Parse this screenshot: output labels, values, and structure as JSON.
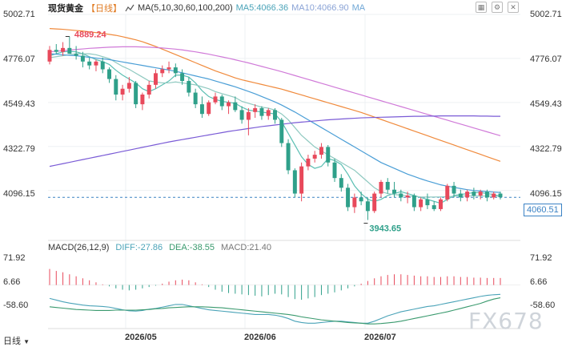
{
  "header": {
    "symbol": "现货黄金",
    "period": "【日线】",
    "ma_label": "MA(5,10,30,60,100,200)",
    "ma5": "MA5:4066.36",
    "ma10": "MA10:4066.90",
    "ma_more": "MA"
  },
  "macd_header": {
    "label": "MACD(26,12,9)",
    "dif": "DIFF:-27.86",
    "dea": "DEA:-38.55",
    "macd": "MACD:21.40"
  },
  "current_price": "4060.51",
  "bottom_tab": "日线",
  "watermark": "FX678",
  "colors": {
    "up": "#e8495b",
    "down": "#2fa08a",
    "ma5": "#5bbfb3",
    "ma10": "#8fc9c0",
    "ma30": "#4a9ed6",
    "ma60": "#f08a3c",
    "ma100": "#d07ad8",
    "ma200": "#7a5bd6"
  },
  "chart_data": [
    {
      "type": "candlestick",
      "title": "现货黄金 日线",
      "y_ticks": [
        5002.71,
        4776.07,
        4549.43,
        4322.79,
        4096.15
      ],
      "y_range": [
        3880,
        5002.71
      ],
      "x_ticks": [
        "2026/05",
        "2026/06",
        "2026/07"
      ],
      "annotations": [
        {
          "label": "4889.24",
          "value": 4889.24
        },
        {
          "label": "3943.65",
          "value": 3943.65
        }
      ],
      "current_price": 4060.51,
      "candles": [
        [
          4760,
          4840,
          4745,
          4820
        ],
        [
          4820,
          4850,
          4800,
          4810
        ],
        [
          4810,
          4860,
          4790,
          4830
        ],
        [
          4830,
          4889,
          4810,
          4800
        ],
        [
          4800,
          4840,
          4770,
          4790
        ],
        [
          4790,
          4810,
          4730,
          4760
        ],
        [
          4760,
          4780,
          4720,
          4740
        ],
        [
          4740,
          4770,
          4710,
          4760
        ],
        [
          4760,
          4780,
          4700,
          4720
        ],
        [
          4720,
          4730,
          4650,
          4670
        ],
        [
          4670,
          4690,
          4560,
          4590
        ],
        [
          4590,
          4640,
          4560,
          4620
        ],
        [
          4620,
          4680,
          4600,
          4650
        ],
        [
          4650,
          4660,
          4520,
          4540
        ],
        [
          4540,
          4600,
          4510,
          4590
        ],
        [
          4590,
          4660,
          4570,
          4640
        ],
        [
          4640,
          4720,
          4620,
          4700
        ],
        [
          4700,
          4740,
          4680,
          4720
        ],
        [
          4720,
          4760,
          4700,
          4730
        ],
        [
          4730,
          4750,
          4680,
          4700
        ],
        [
          4700,
          4720,
          4640,
          4660
        ],
        [
          4660,
          4680,
          4580,
          4600
        ],
        [
          4600,
          4620,
          4520,
          4540
        ],
        [
          4540,
          4580,
          4470,
          4490
        ],
        [
          4490,
          4560,
          4480,
          4550
        ],
        [
          4550,
          4600,
          4540,
          4580
        ],
        [
          4580,
          4590,
          4510,
          4530
        ],
        [
          4530,
          4560,
          4490,
          4550
        ],
        [
          4550,
          4580,
          4500,
          4510
        ],
        [
          4510,
          4530,
          4440,
          4460
        ],
        [
          4460,
          4520,
          4380,
          4500
        ],
        [
          4500,
          4540,
          4470,
          4520
        ],
        [
          4520,
          4530,
          4460,
          4480
        ],
        [
          4480,
          4520,
          4460,
          4510
        ],
        [
          4510,
          4520,
          4440,
          4460
        ],
        [
          4460,
          4470,
          4320,
          4340
        ],
        [
          4340,
          4360,
          4180,
          4200
        ],
        [
          4200,
          4210,
          4060,
          4080
        ],
        [
          4080,
          4240,
          4040,
          4220
        ],
        [
          4220,
          4280,
          4200,
          4260
        ],
        [
          4260,
          4300,
          4240,
          4280
        ],
        [
          4280,
          4340,
          4260,
          4320
        ],
        [
          4320,
          4330,
          4220,
          4240
        ],
        [
          4240,
          4260,
          4140,
          4160
        ],
        [
          4160,
          4180,
          4090,
          4110
        ],
        [
          4110,
          4130,
          3990,
          4010
        ],
        [
          4010,
          4080,
          3980,
          4060
        ],
        [
          4060,
          4090,
          4020,
          4040
        ],
        [
          4040,
          4060,
          3944,
          3990
        ],
        [
          3990,
          4090,
          3980,
          4080
        ],
        [
          4080,
          4150,
          4060,
          4140
        ],
        [
          4140,
          4160,
          4080,
          4100
        ],
        [
          4100,
          4140,
          4060,
          4080
        ],
        [
          4080,
          4100,
          4040,
          4060
        ],
        [
          4060,
          4090,
          4030,
          4070
        ],
        [
          4070,
          4080,
          3990,
          4010
        ],
        [
          4010,
          4060,
          3990,
          4050
        ],
        [
          4050,
          4080,
          4000,
          4020
        ],
        [
          4020,
          4040,
          3990,
          4000
        ],
        [
          4000,
          4060,
          3990,
          4050
        ],
        [
          4050,
          4130,
          4040,
          4120
        ],
        [
          4120,
          4140,
          4060,
          4080
        ],
        [
          4080,
          4100,
          4040,
          4060
        ],
        [
          4060,
          4100,
          4040,
          4090
        ],
        [
          4090,
          4110,
          4050,
          4070
        ],
        [
          4070,
          4100,
          4050,
          4090
        ],
        [
          4090,
          4100,
          4040,
          4060
        ],
        [
          4060,
          4090,
          4050,
          4080
        ],
        [
          4080,
          4090,
          4050,
          4061
        ]
      ],
      "ma_lines": [
        {
          "name": "MA5",
          "color": "#5bbfb3",
          "values": [
            4790,
            4800,
            4810,
            4812,
            4810,
            4800,
            4785,
            4770,
            4760,
            4745,
            4715,
            4690,
            4670,
            4650,
            4620,
            4605,
            4620,
            4640,
            4660,
            4690,
            4690,
            4680,
            4650,
            4610,
            4580,
            4565,
            4555,
            4550,
            4545,
            4525,
            4510,
            4505,
            4500,
            4495,
            4490,
            4450,
            4390,
            4330,
            4270,
            4230,
            4210,
            4220,
            4260,
            4250,
            4230,
            4180,
            4120,
            4080,
            4050,
            4040,
            4050,
            4070,
            4080,
            4090,
            4080,
            4070,
            4060,
            4050,
            4040,
            4030,
            4050,
            4070,
            4075,
            4080,
            4085,
            4085,
            4080,
            4075,
            4066
          ]
        },
        {
          "name": "MA10",
          "color": "#8fc9c0",
          "values": [
            4780,
            4785,
            4790,
            4795,
            4800,
            4800,
            4800,
            4795,
            4785,
            4775,
            4755,
            4735,
            4720,
            4700,
            4680,
            4660,
            4655,
            4650,
            4650,
            4655,
            4650,
            4645,
            4640,
            4630,
            4620,
            4605,
            4595,
            4585,
            4575,
            4555,
            4545,
            4535,
            4525,
            4520,
            4510,
            4490,
            4460,
            4420,
            4380,
            4350,
            4320,
            4300,
            4280,
            4260,
            4240,
            4220,
            4200,
            4170,
            4140,
            4110,
            4090,
            4080,
            4075,
            4072,
            4068,
            4065,
            4063,
            4062,
            4062,
            4063,
            4064,
            4066,
            4067,
            4068,
            4068,
            4067,
            4067,
            4067,
            4067
          ]
        },
        {
          "name": "MA30",
          "color": "#4a9ed6",
          "values": [
            4800,
            4798,
            4795,
            4792,
            4790,
            4786,
            4782,
            4778,
            4774,
            4770,
            4764,
            4758,
            4752,
            4746,
            4740,
            4734,
            4728,
            4722,
            4716,
            4710,
            4702,
            4694,
            4686,
            4678,
            4670,
            4660,
            4650,
            4640,
            4630,
            4618,
            4606,
            4594,
            4580,
            4566,
            4552,
            4536,
            4518,
            4500,
            4480,
            4460,
            4440,
            4420,
            4400,
            4380,
            4360,
            4340,
            4320,
            4300,
            4280,
            4260,
            4240,
            4225,
            4210,
            4195,
            4180,
            4168,
            4156,
            4145,
            4135,
            4125,
            4118,
            4112,
            4106,
            4100,
            4096,
            4093,
            4090,
            4088,
            4086
          ]
        },
        {
          "name": "MA60",
          "color": "#f08a3c",
          "values": [
            4930,
            4928,
            4926,
            4923,
            4920,
            4917,
            4913,
            4909,
            4905,
            4900,
            4895,
            4888,
            4880,
            4872,
            4862,
            4850,
            4838,
            4824,
            4810,
            4796,
            4782,
            4768,
            4754,
            4740,
            4726,
            4712,
            4700,
            4688,
            4676,
            4666,
            4658,
            4650,
            4642,
            4634,
            4626,
            4618,
            4608,
            4598,
            4588,
            4578,
            4568,
            4558,
            4548,
            4538,
            4528,
            4518,
            4508,
            4498,
            4486,
            4474,
            4462,
            4450,
            4438,
            4426,
            4414,
            4402,
            4390,
            4378,
            4366,
            4354,
            4342,
            4330,
            4318,
            4306,
            4294,
            4282,
            4270,
            4258,
            4246
          ]
        },
        {
          "name": "MA100",
          "color": "#d07ad8",
          "values": [
            4810,
            4813,
            4816,
            4819,
            4822,
            4825,
            4828,
            4830,
            4832,
            4834,
            4835,
            4836,
            4836,
            4836,
            4835,
            4834,
            4832,
            4830,
            4827,
            4824,
            4820,
            4815,
            4810,
            4804,
            4798,
            4791,
            4784,
            4777,
            4769,
            4761,
            4753,
            4744,
            4735,
            4726,
            4717,
            4708,
            4698,
            4688,
            4678,
            4668,
            4658,
            4648,
            4638,
            4628,
            4618,
            4608,
            4598,
            4588,
            4578,
            4568,
            4558,
            4548,
            4538,
            4528,
            4518,
            4508,
            4498,
            4488,
            4478,
            4468,
            4458,
            4448,
            4438,
            4428,
            4418,
            4408,
            4398,
            4388,
            4378
          ]
        },
        {
          "name": "MA200",
          "color": "#7a5bd6",
          "values": [
            4220,
            4227,
            4234,
            4241,
            4248,
            4255,
            4262,
            4269,
            4276,
            4283,
            4290,
            4297,
            4304,
            4311,
            4318,
            4325,
            4332,
            4339,
            4346,
            4352,
            4358,
            4364,
            4370,
            4376,
            4382,
            4388,
            4394,
            4400,
            4405,
            4410,
            4415,
            4420,
            4425,
            4429,
            4433,
            4437,
            4441,
            4445,
            4448,
            4451,
            4454,
            4457,
            4460,
            4462,
            4464,
            4466,
            4468,
            4470,
            4471,
            4472,
            4473,
            4474,
            4475,
            4476,
            4477,
            4478,
            4478,
            4479,
            4479,
            4480,
            4480,
            4480,
            4480,
            4480,
            4480,
            4479,
            4479,
            4478,
            4478
          ]
        }
      ]
    },
    {
      "type": "macd",
      "title": "MACD(26,12,9)",
      "y_ticks": [
        71.92,
        6.66,
        -58.6
      ],
      "y_range": [
        -130,
        90
      ],
      "hist": [
        48,
        42,
        38,
        32,
        26,
        20,
        14,
        8,
        2,
        -4,
        -10,
        -14,
        -16,
        -14,
        -10,
        -6,
        -2,
        4,
        10,
        14,
        16,
        14,
        8,
        2,
        -6,
        -14,
        -20,
        -24,
        -26,
        -28,
        -30,
        -32,
        -34,
        -30,
        -26,
        -28,
        -36,
        -42,
        -44,
        -40,
        -36,
        -30,
        -26,
        -22,
        -16,
        -10,
        -4,
        4,
        12,
        20,
        26,
        30,
        32,
        32,
        30,
        28,
        26,
        26,
        24,
        24,
        26,
        26,
        24,
        24,
        22,
        22,
        21,
        21,
        21
      ],
      "dif": [
        -40,
        -45,
        -50,
        -54,
        -57,
        -60,
        -62,
        -63,
        -64,
        -66,
        -70,
        -74,
        -77,
        -78,
        -76,
        -72,
        -70,
        -66,
        -62,
        -58,
        -58,
        -62,
        -66,
        -70,
        -74,
        -76,
        -78,
        -80,
        -82,
        -84,
        -86,
        -88,
        -88,
        -88,
        -90,
        -94,
        -100,
        -108,
        -112,
        -114,
        -114,
        -112,
        -110,
        -108,
        -108,
        -110,
        -112,
        -114,
        -114,
        -108,
        -100,
        -92,
        -86,
        -80,
        -76,
        -72,
        -68,
        -64,
        -62,
        -58,
        -54,
        -50,
        -46,
        -42,
        -38,
        -34,
        -31,
        -29,
        -28
      ],
      "dea": [
        -65,
        -67,
        -69,
        -71,
        -73,
        -74,
        -75,
        -76,
        -76,
        -76,
        -75,
        -75,
        -75,
        -75,
        -74,
        -73,
        -71,
        -70,
        -68,
        -67,
        -66,
        -65,
        -65,
        -65,
        -66,
        -67,
        -68,
        -70,
        -72,
        -74,
        -76,
        -78,
        -80,
        -82,
        -84,
        -86,
        -88,
        -91,
        -95,
        -98,
        -101,
        -104,
        -106,
        -108,
        -110,
        -112,
        -113,
        -114,
        -116,
        -116,
        -115,
        -113,
        -111,
        -108,
        -104,
        -100,
        -96,
        -92,
        -88,
        -84,
        -80,
        -75,
        -70,
        -65,
        -60,
        -55,
        -48,
        -42,
        -38
      ]
    }
  ]
}
